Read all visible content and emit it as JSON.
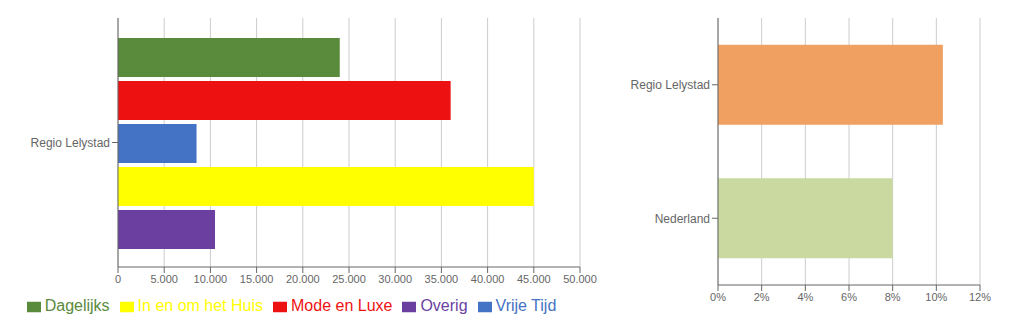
{
  "chart_data": [
    {
      "type": "bar",
      "orientation": "horizontal",
      "categories": [
        "Regio Lelystad"
      ],
      "series": [
        {
          "name": "Dagelijks",
          "color": "#5a8a3c",
          "values": [
            24000
          ]
        },
        {
          "name": "Mode en Luxe",
          "color": "#ee1111",
          "values": [
            36000
          ]
        },
        {
          "name": "Vrije Tijd",
          "color": "#4472c4",
          "values": [
            8500
          ]
        },
        {
          "name": "In en om het Huis",
          "color": "#ffff00",
          "values": [
            45000
          ]
        },
        {
          "name": "Overig",
          "color": "#6b3fa0",
          "values": [
            10500
          ]
        }
      ],
      "xlim": [
        0,
        50000
      ],
      "xticks": [
        0,
        {
          "value": 5000,
          "label": "5.000"
        },
        {
          "value": 10000,
          "label": "10.000"
        },
        {
          "value": 15000,
          "label": "15.000"
        },
        {
          "value": 20000,
          "label": "20.000"
        },
        {
          "value": 25000,
          "label": "25.000"
        },
        {
          "value": 30000,
          "label": "30.000"
        },
        {
          "value": 35000,
          "label": "35.000"
        },
        {
          "value": 40000,
          "label": "40.000"
        },
        {
          "value": 45000,
          "label": "45.000"
        },
        {
          "value": 50000,
          "label": "50.000"
        }
      ],
      "grid": true,
      "legend": "bottom"
    },
    {
      "type": "bar",
      "orientation": "horizontal",
      "categories": [
        "Regio Lelystad",
        "Nederland"
      ],
      "values": [
        0.103,
        0.08
      ],
      "colors": [
        "#f0a060",
        "#c9d9a0"
      ],
      "xlim": [
        0,
        0.12
      ],
      "xticks": [
        {
          "value": 0,
          "label": "0%"
        },
        {
          "value": 0.02,
          "label": "2%"
        },
        {
          "value": 0.04,
          "label": "4%"
        },
        {
          "value": 0.06,
          "label": "6%"
        },
        {
          "value": 0.08,
          "label": "8%"
        },
        {
          "value": 0.1,
          "label": "10%"
        },
        {
          "value": 0.12,
          "label": "12%"
        }
      ],
      "grid": true
    }
  ]
}
